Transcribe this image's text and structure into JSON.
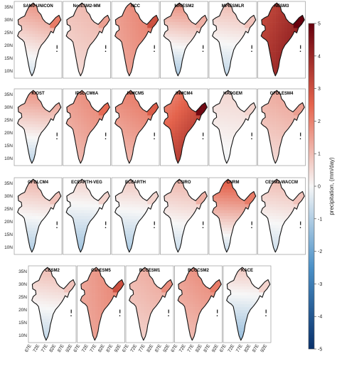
{
  "figure": {
    "colorbar": {
      "label": "precipitation, (mm/day)",
      "min": -5,
      "max": 5,
      "ticks": [
        5,
        4,
        3,
        2,
        1,
        0,
        -1,
        -2,
        -3,
        -4,
        -5
      ],
      "tick_labels": [
        "5",
        "4",
        "3",
        "2",
        "1",
        "0",
        "-1",
        "-2",
        "-3",
        "-4",
        "-5"
      ],
      "colors": {
        "negative_end": "#08306b",
        "negative_mid": "#4a90c7",
        "neutral": "#f7f7f7",
        "positive_mid": "#e5644d",
        "positive_end": "#67000d"
      }
    },
    "lat_ticks": [
      "35N",
      "30N",
      "25N",
      "20N",
      "15N",
      "10N"
    ],
    "lon_ticks": [
      "67E",
      "72E",
      "77E",
      "82E",
      "87E",
      "92E"
    ],
    "map_colors": {
      "border": "#111111",
      "ocean": "#ffffff",
      "frame": "#888888"
    },
    "rows": [
      {
        "panels": [
          {
            "name": "SAM0-UNICON",
            "north": 0.45,
            "south": -0.35,
            "east": 0.35,
            "west": 0.1
          },
          {
            "name": "NorESM2-MM",
            "north": 0.25,
            "south": 0.05,
            "east": 0.25,
            "west": 0.1
          },
          {
            "name": "NCC",
            "north": 0.4,
            "south": 0.3,
            "east": 0.5,
            "west": 0.15
          },
          {
            "name": "MRIESM2",
            "north": 0.55,
            "south": -0.5,
            "east": 0.2,
            "west": 0.05
          },
          {
            "name": "MPIESMLR",
            "north": 0.3,
            "south": -0.35,
            "east": 0.15,
            "west": 0.05
          },
          {
            "name": "NESM3",
            "north": 0.75,
            "south": 0.95,
            "east": 0.9,
            "west": 0.35
          }
        ]
      },
      {
        "panels": [
          {
            "name": "KIOST",
            "north": 0.55,
            "south": -0.4,
            "east": 0.15,
            "west": 0.05
          },
          {
            "name": "IPSL-CM6A",
            "north": 0.45,
            "south": 0.2,
            "east": 0.4,
            "west": 0.1
          },
          {
            "name": "INMCM5",
            "north": 0.5,
            "south": 0.15,
            "east": 0.45,
            "west": 0.2
          },
          {
            "name": "INMCM4",
            "north": 0.45,
            "south": 0.95,
            "east": 0.8,
            "west": 0.1
          },
          {
            "name": "HADGEM",
            "north": 0.15,
            "south": -0.1,
            "east": 0.1,
            "west": 0.05
          },
          {
            "name": "GFDLESM4",
            "north": 0.35,
            "south": 0.05,
            "east": 0.25,
            "west": 0.1
          }
        ]
      },
      {
        "panels": [
          {
            "name": "GFDLCM4",
            "north": 0.35,
            "south": -0.45,
            "east": 0.15,
            "west": 0.05
          },
          {
            "name": "ECEARTH-VEG",
            "north": 0.2,
            "south": -0.5,
            "east": 0.1,
            "west": 0.05
          },
          {
            "name": "ECEARTH",
            "north": 0.25,
            "south": -0.45,
            "east": 0.1,
            "west": 0.05
          },
          {
            "name": "CSIRO",
            "north": 0.3,
            "south": -0.35,
            "east": 0.2,
            "west": 0.1
          },
          {
            "name": "CNRM",
            "north": 0.75,
            "south": -0.5,
            "east": 0.35,
            "west": 0.25
          },
          {
            "name": "CESM2-WACCM",
            "north": 0.3,
            "south": -0.3,
            "east": 0.15,
            "west": 0.05
          }
        ]
      },
      {
        "panels": [
          {
            "name": "CESM2",
            "north": 0.3,
            "south": -0.35,
            "east": 0.15,
            "west": 0.05
          },
          {
            "name": "CanESM5",
            "north": 0.35,
            "south": 0.3,
            "east": 0.5,
            "west": 0.15
          },
          {
            "name": "BCCESM1",
            "north": 0.3,
            "south": 0.1,
            "east": 0.3,
            "west": 0.1
          },
          {
            "name": "BCCCSM2",
            "north": 0.45,
            "south": 0.2,
            "east": 0.35,
            "west": 0.1
          },
          {
            "name": "KACE",
            "north": 0.25,
            "south": -0.55,
            "east": 0.1,
            "west": 0.05
          }
        ]
      }
    ]
  }
}
